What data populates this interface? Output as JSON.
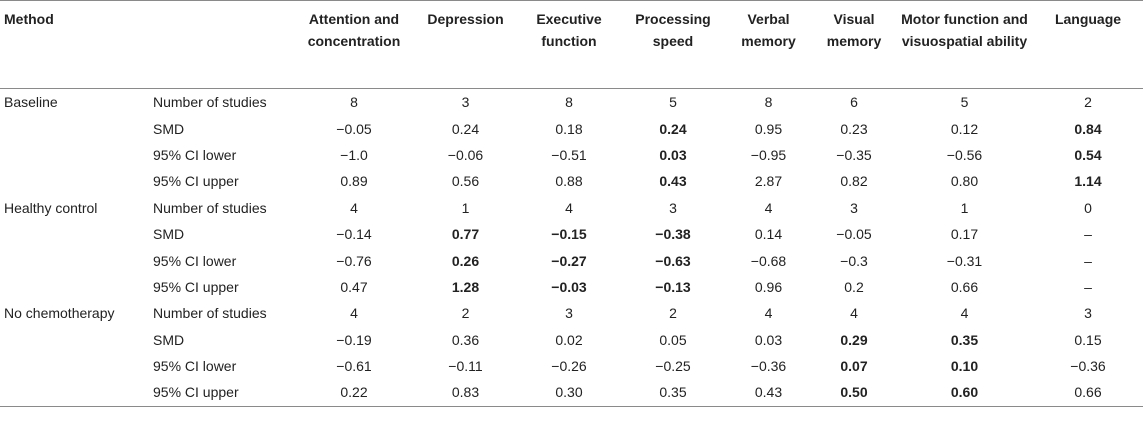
{
  "headers": {
    "method": "Method",
    "stat": "",
    "domains": [
      "Attention and concentration",
      "Depression",
      "Executive function",
      "Processing speed",
      "Verbal memory",
      "Visual memory",
      "Motor function and visuospatial ability",
      "Language"
    ]
  },
  "groups": [
    {
      "method": "Baseline",
      "rows": [
        {
          "stat": "Number of studies",
          "values": [
            "8",
            "3",
            "8",
            "5",
            "8",
            "6",
            "5",
            "2"
          ],
          "bold": [
            false,
            false,
            false,
            false,
            false,
            false,
            false,
            false
          ]
        },
        {
          "stat": "SMD",
          "values": [
            "−0.05",
            "0.24",
            "0.18",
            "0.24",
            "0.95",
            "0.23",
            "0.12",
            "0.84"
          ],
          "bold": [
            false,
            false,
            false,
            true,
            false,
            false,
            false,
            true
          ]
        },
        {
          "stat": "95% CI lower",
          "values": [
            "−1.0",
            "−0.06",
            "−0.51",
            "0.03",
            "−0.95",
            "−0.35",
            "−0.56",
            "0.54"
          ],
          "bold": [
            false,
            false,
            false,
            true,
            false,
            false,
            false,
            true
          ]
        },
        {
          "stat": "95% CI upper",
          "values": [
            "0.89",
            "0.56",
            "0.88",
            "0.43",
            "2.87",
            "0.82",
            "0.80",
            "1.14"
          ],
          "bold": [
            false,
            false,
            false,
            true,
            false,
            false,
            false,
            true
          ]
        }
      ]
    },
    {
      "method": "Healthy control",
      "rows": [
        {
          "stat": "Number of studies",
          "values": [
            "4",
            "1",
            "4",
            "3",
            "4",
            "3",
            "1",
            "0"
          ],
          "bold": [
            false,
            false,
            false,
            false,
            false,
            false,
            false,
            false
          ]
        },
        {
          "stat": "SMD",
          "values": [
            "−0.14",
            "0.77",
            "−0.15",
            "−0.38",
            "0.14",
            "−0.05",
            "0.17",
            "–"
          ],
          "bold": [
            false,
            true,
            true,
            true,
            false,
            false,
            false,
            false
          ]
        },
        {
          "stat": "95% CI lower",
          "values": [
            "−0.76",
            "0.26",
            "−0.27",
            "−0.63",
            "−0.68",
            "−0.3",
            "−0.31",
            "–"
          ],
          "bold": [
            false,
            true,
            true,
            true,
            false,
            false,
            false,
            false
          ]
        },
        {
          "stat": "95% CI upper",
          "values": [
            "0.47",
            "1.28",
            "−0.03",
            "−0.13",
            "0.96",
            "0.2",
            "0.66",
            "–"
          ],
          "bold": [
            false,
            true,
            true,
            true,
            false,
            false,
            false,
            false
          ]
        }
      ]
    },
    {
      "method": "No chemotherapy",
      "rows": [
        {
          "stat": "Number of studies",
          "values": [
            "4",
            "2",
            "3",
            "2",
            "4",
            "4",
            "4",
            "3"
          ],
          "bold": [
            false,
            false,
            false,
            false,
            false,
            false,
            false,
            false
          ]
        },
        {
          "stat": "SMD",
          "values": [
            "−0.19",
            "0.36",
            "0.02",
            "0.05",
            "0.03",
            "0.29",
            "0.35",
            "0.15"
          ],
          "bold": [
            false,
            false,
            false,
            false,
            false,
            true,
            true,
            false
          ]
        },
        {
          "stat": "95% CI lower",
          "values": [
            "−0.61",
            "−0.11",
            "−0.26",
            "−0.25",
            "−0.36",
            "0.07",
            "0.10",
            "−0.36"
          ],
          "bold": [
            false,
            false,
            false,
            false,
            false,
            true,
            true,
            false
          ]
        },
        {
          "stat": "95% CI upper",
          "values": [
            "0.22",
            "0.83",
            "0.30",
            "0.35",
            "0.43",
            "0.50",
            "0.60",
            "0.66"
          ],
          "bold": [
            false,
            false,
            false,
            false,
            false,
            true,
            true,
            false
          ]
        }
      ]
    }
  ]
}
